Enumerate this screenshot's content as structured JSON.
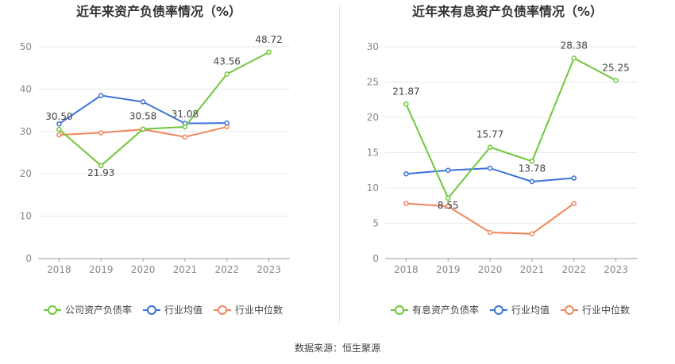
{
  "source": "数据来源：恒生聚源",
  "chart_data": [
    {
      "type": "line",
      "title": "近年来资产负债率情况（%）",
      "categories": [
        "2018",
        "2019",
        "2020",
        "2021",
        "2022",
        "2023"
      ],
      "ylim": [
        0,
        50
      ],
      "yticks": [
        "0",
        "10",
        "20",
        "30",
        "40",
        "50"
      ],
      "grid": true,
      "legend_position": "bottom",
      "series": [
        {
          "name": "公司资产负债率",
          "color": "#6fc63a",
          "values": [
            30.5,
            21.93,
            30.58,
            31.08,
            43.56,
            48.72
          ],
          "labels": [
            "30.50",
            "21.93",
            "30.58",
            "31.08",
            "43.56",
            "48.72"
          ]
        },
        {
          "name": "行业均值",
          "color": "#3b72d9",
          "values": [
            31.8,
            38.5,
            37.0,
            31.9,
            32.0,
            null
          ]
        },
        {
          "name": "行业中位数",
          "color": "#f0865c",
          "values": [
            29.2,
            29.7,
            30.5,
            28.7,
            31.1,
            null
          ]
        }
      ]
    },
    {
      "type": "line",
      "title": "近年来有息资产负债率情况（%）",
      "categories": [
        "2018",
        "2019",
        "2020",
        "2021",
        "2022",
        "2023"
      ],
      "ylim": [
        0,
        30
      ],
      "yticks": [
        "0",
        "5",
        "10",
        "15",
        "20",
        "25",
        "30"
      ],
      "grid": true,
      "legend_position": "bottom",
      "series": [
        {
          "name": "有息资产负债率",
          "color": "#6fc63a",
          "values": [
            21.87,
            8.55,
            15.77,
            13.78,
            28.38,
            25.25
          ],
          "labels": [
            "21.87",
            "8.55",
            "15.77",
            "13.78",
            "28.38",
            "25.25"
          ]
        },
        {
          "name": "行业均值",
          "color": "#3b72d9",
          "values": [
            12.0,
            12.5,
            12.8,
            10.9,
            11.4,
            null
          ]
        },
        {
          "name": "行业中位数",
          "color": "#f0865c",
          "values": [
            7.8,
            7.4,
            3.7,
            3.5,
            7.8,
            null
          ]
        }
      ]
    }
  ]
}
